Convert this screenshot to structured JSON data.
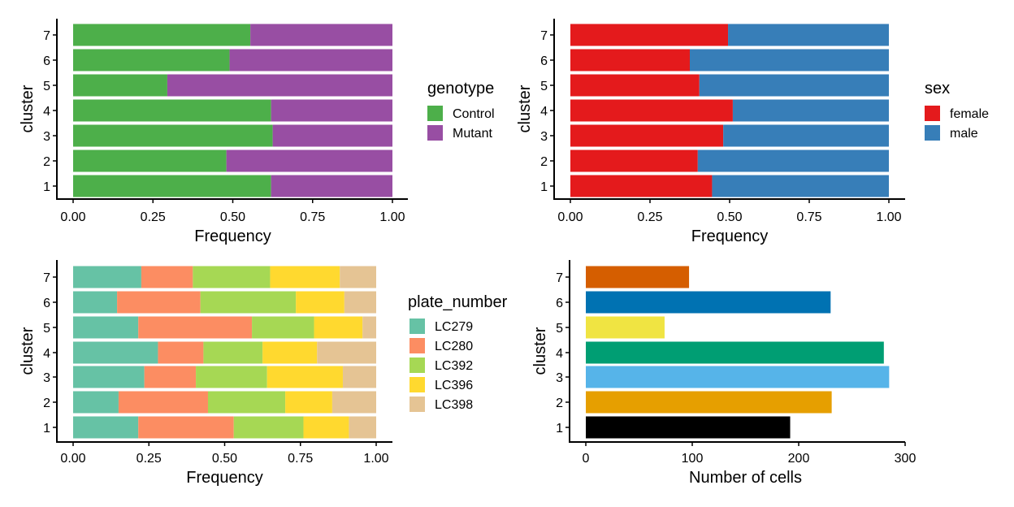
{
  "chart_data": [
    {
      "id": "genotype",
      "type": "bar",
      "orientation": "horizontal",
      "stacked": true,
      "categories": [
        "1",
        "2",
        "3",
        "4",
        "5",
        "6",
        "7"
      ],
      "series": [
        {
          "name": "Control",
          "color": "#4DAF4A",
          "values": [
            0.62,
            0.48,
            0.625,
            0.62,
            0.295,
            0.49,
            0.555
          ]
        },
        {
          "name": "Mutant",
          "color": "#984EA3",
          "values": [
            0.38,
            0.52,
            0.375,
            0.38,
            0.705,
            0.51,
            0.445
          ]
        }
      ],
      "xlabel": "Frequency",
      "ylabel": "cluster",
      "xlim": [
        0,
        1
      ],
      "xticks": [
        "0.00",
        "0.25",
        "0.50",
        "0.75",
        "1.00"
      ],
      "legend_title": "genotype",
      "legend_position": "right",
      "grid": false
    },
    {
      "id": "sex",
      "type": "bar",
      "orientation": "horizontal",
      "stacked": true,
      "categories": [
        "1",
        "2",
        "3",
        "4",
        "5",
        "6",
        "7"
      ],
      "series": [
        {
          "name": "female",
          "color": "#E41A1C",
          "values": [
            0.445,
            0.4,
            0.48,
            0.51,
            0.405,
            0.375,
            0.495
          ]
        },
        {
          "name": "male",
          "color": "#377EB8",
          "values": [
            0.555,
            0.6,
            0.52,
            0.49,
            0.595,
            0.625,
            0.505
          ]
        }
      ],
      "xlabel": "Frequency",
      "ylabel": "cluster",
      "xlim": [
        0,
        1
      ],
      "xticks": [
        "0.00",
        "0.25",
        "0.50",
        "0.75",
        "1.00"
      ],
      "legend_title": "sex",
      "legend_position": "right",
      "grid": false
    },
    {
      "id": "plate_number",
      "type": "bar",
      "orientation": "horizontal",
      "stacked": true,
      "categories": [
        "1",
        "2",
        "3",
        "4",
        "5",
        "6",
        "7"
      ],
      "series": [
        {
          "name": "LC279",
          "color": "#66C2A5",
          "values": [
            0.215,
            0.15,
            0.235,
            0.28,
            0.215,
            0.145,
            0.225
          ]
        },
        {
          "name": "LC280",
          "color": "#FC8D62",
          "values": [
            0.315,
            0.295,
            0.17,
            0.15,
            0.375,
            0.275,
            0.17
          ]
        },
        {
          "name": "LC392",
          "color": "#A6D854",
          "values": [
            0.23,
            0.255,
            0.235,
            0.195,
            0.205,
            0.315,
            0.255
          ]
        },
        {
          "name": "LC396",
          "color": "#FFD92F",
          "values": [
            0.15,
            0.155,
            0.25,
            0.18,
            0.16,
            0.16,
            0.23
          ]
        },
        {
          "name": "LC398",
          "color": "#E5C494",
          "values": [
            0.09,
            0.145,
            0.11,
            0.195,
            0.045,
            0.105,
            0.12
          ]
        }
      ],
      "xlabel": "Frequency",
      "ylabel": "cluster",
      "xlim": [
        0,
        1
      ],
      "xticks": [
        "0.00",
        "0.25",
        "0.50",
        "0.75",
        "1.00"
      ],
      "legend_title": "plate_number",
      "legend_position": "right",
      "grid": false
    },
    {
      "id": "cells",
      "type": "bar",
      "orientation": "horizontal",
      "stacked": false,
      "categories": [
        "1",
        "2",
        "3",
        "4",
        "5",
        "6",
        "7"
      ],
      "values": [
        192,
        231,
        285,
        280,
        74,
        230,
        97
      ],
      "colors": [
        "#000000",
        "#E69F00",
        "#56B4E9",
        "#009E73",
        "#F0E442",
        "#0072B2",
        "#D55E00"
      ],
      "xlabel": "Number of cells",
      "ylabel": "cluster",
      "xlim": [
        0,
        300
      ],
      "xticks": [
        "0",
        "100",
        "200",
        "300"
      ],
      "grid": false
    }
  ]
}
